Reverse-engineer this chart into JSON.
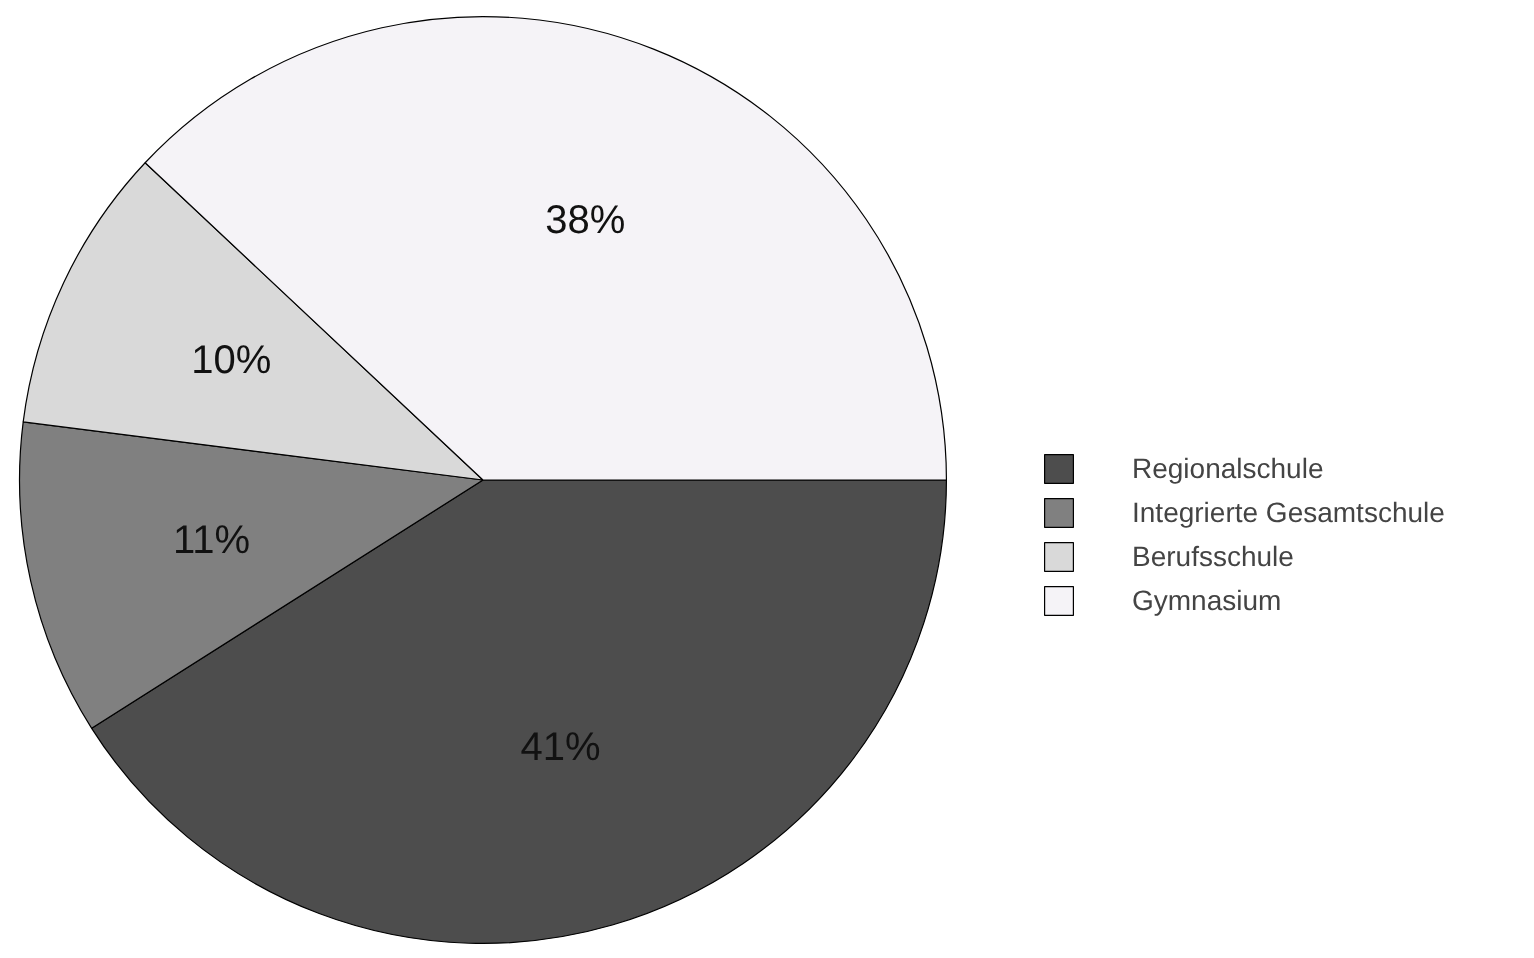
{
  "chart_data": {
    "type": "pie",
    "categories": [
      "Regionalschule",
      "Integrierte Gesamtschule",
      "Berufsschule",
      "Gymnasium"
    ],
    "values": [
      41,
      11,
      10,
      38
    ],
    "value_labels": [
      "41%",
      "11%",
      "10%",
      "38%"
    ],
    "colors": [
      "#4d4d4d",
      "#808080",
      "#d9d9d9",
      "#f5f3f7"
    ],
    "legend": "right"
  }
}
